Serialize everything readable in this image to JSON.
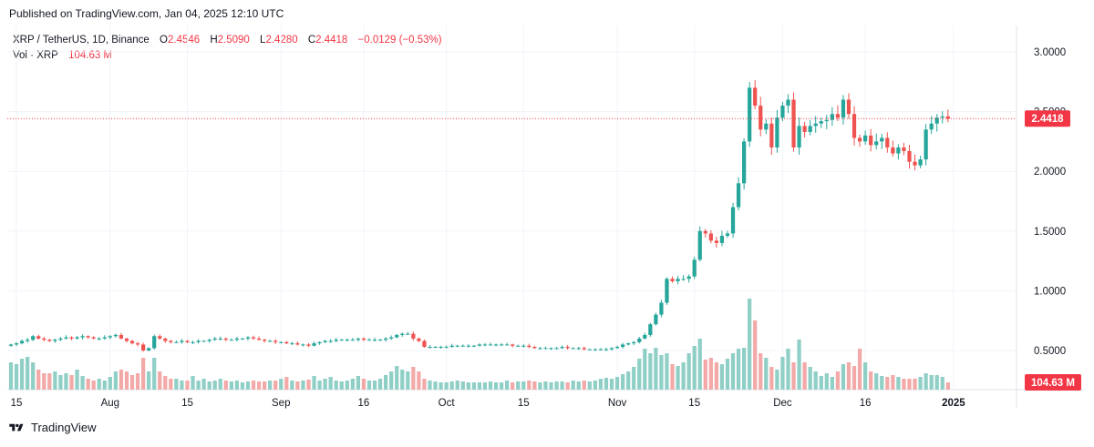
{
  "header": {
    "published": "Published on TradingView.com, Jan 04, 2025 12:10 UTC"
  },
  "legend": {
    "symbol": "XRP / TetherUS, 1D, Binance",
    "o_label": "O",
    "o_value": "2.4546",
    "h_label": "H",
    "h_value": "2.5090",
    "l_label": "L",
    "l_value": "2.4280",
    "c_label": "C",
    "c_value": "2.4418",
    "change": "−0.0129 (−0.53%)",
    "vol_label": "Vol · XRP",
    "vol_value": "104.63 M"
  },
  "footer": {
    "brand": "TradingView"
  },
  "colors": {
    "up": "#26a69a",
    "down": "#ef5350",
    "vol_up": "#8fcfc6",
    "vol_down": "#f2a9a8",
    "grid": "#f0f3fa",
    "price_line": "#f23645",
    "price_tag": "#f23645"
  },
  "chart_data": {
    "type": "candlestick",
    "y_axis": {
      "ticks": [
        "3.0000",
        "2.5000",
        "2.0000",
        "1.5000",
        "1.0000",
        "0.5000"
      ],
      "tick_values": [
        3.0,
        2.5,
        2.0,
        1.5,
        1.0,
        0.5
      ],
      "range": [
        0.18,
        3.2
      ]
    },
    "x_axis": {
      "ticks": [
        "15",
        "Aug",
        "15",
        "Sep",
        "16",
        "Oct",
        "15",
        "Nov",
        "15",
        "Dec",
        "16",
        "2025"
      ],
      "tick_dates": [
        "2024-07-15",
        "2024-08-01",
        "2024-08-15",
        "2024-09-01",
        "2024-09-16",
        "2024-10-01",
        "2024-10-15",
        "2024-11-01",
        "2024-11-15",
        "2024-12-01",
        "2024-12-16",
        "2025-01-01"
      ],
      "bold_tick": "2025",
      "start_date": "2024-07-14",
      "end_date": "2025-01-04"
    },
    "last_price": 2.4418,
    "last_price_label": "2.4418",
    "last_volume_label": "104.63 M",
    "close_series_description": "Daily closes read from chart, 2024-07-14 to 2025-01-04",
    "closes": [
      0.55,
      0.56,
      0.58,
      0.59,
      0.62,
      0.6,
      0.59,
      0.58,
      0.59,
      0.6,
      0.61,
      0.6,
      0.61,
      0.62,
      0.61,
      0.6,
      0.6,
      0.61,
      0.62,
      0.63,
      0.6,
      0.58,
      0.56,
      0.55,
      0.5,
      0.52,
      0.62,
      0.6,
      0.58,
      0.57,
      0.57,
      0.58,
      0.57,
      0.57,
      0.58,
      0.58,
      0.59,
      0.6,
      0.6,
      0.59,
      0.59,
      0.6,
      0.6,
      0.61,
      0.6,
      0.59,
      0.58,
      0.58,
      0.57,
      0.57,
      0.56,
      0.56,
      0.55,
      0.55,
      0.54,
      0.56,
      0.57,
      0.58,
      0.58,
      0.59,
      0.59,
      0.59,
      0.59,
      0.6,
      0.59,
      0.59,
      0.59,
      0.59,
      0.6,
      0.61,
      0.63,
      0.64,
      0.64,
      0.6,
      0.58,
      0.53,
      0.53,
      0.53,
      0.53,
      0.53,
      0.54,
      0.54,
      0.54,
      0.54,
      0.54,
      0.55,
      0.55,
      0.55,
      0.55,
      0.55,
      0.55,
      0.54,
      0.54,
      0.54,
      0.53,
      0.52,
      0.52,
      0.52,
      0.52,
      0.52,
      0.53,
      0.52,
      0.52,
      0.52,
      0.51,
      0.51,
      0.51,
      0.51,
      0.51,
      0.52,
      0.53,
      0.55,
      0.56,
      0.57,
      0.6,
      0.63,
      0.72,
      0.8,
      0.9,
      1.1,
      1.08,
      1.1,
      1.1,
      1.12,
      1.26,
      1.5,
      1.48,
      1.42,
      1.4,
      1.46,
      1.48,
      1.7,
      1.9,
      2.25,
      2.7,
      2.55,
      2.35,
      2.4,
      2.2,
      2.45,
      2.55,
      2.6,
      2.2,
      2.38,
      2.33,
      2.38,
      2.4,
      2.42,
      2.43,
      2.48,
      2.45,
      2.6,
      2.48,
      2.28,
      2.25,
      2.3,
      2.22,
      2.25,
      2.28,
      2.2,
      2.15,
      2.2,
      2.17,
      2.08,
      2.05,
      2.1,
      2.35,
      2.4,
      2.45,
      2.46,
      2.44
    ],
    "volume_description": "Daily volume bars, relative height 0-1 (largest bar = 1)",
    "volumes": [
      0.3,
      0.28,
      0.34,
      0.36,
      0.3,
      0.22,
      0.18,
      0.18,
      0.2,
      0.16,
      0.18,
      0.16,
      0.22,
      0.15,
      0.12,
      0.1,
      0.12,
      0.1,
      0.14,
      0.2,
      0.22,
      0.2,
      0.16,
      0.18,
      0.35,
      0.2,
      0.35,
      0.2,
      0.15,
      0.12,
      0.12,
      0.1,
      0.1,
      0.15,
      0.1,
      0.12,
      0.09,
      0.1,
      0.12,
      0.1,
      0.09,
      0.1,
      0.08,
      0.09,
      0.1,
      0.09,
      0.09,
      0.1,
      0.1,
      0.12,
      0.14,
      0.1,
      0.09,
      0.1,
      0.11,
      0.15,
      0.1,
      0.12,
      0.14,
      0.1,
      0.09,
      0.1,
      0.12,
      0.15,
      0.12,
      0.1,
      0.1,
      0.12,
      0.16,
      0.2,
      0.26,
      0.22,
      0.2,
      0.25,
      0.2,
      0.12,
      0.1,
      0.09,
      0.08,
      0.08,
      0.09,
      0.1,
      0.09,
      0.08,
      0.08,
      0.08,
      0.08,
      0.09,
      0.08,
      0.08,
      0.1,
      0.08,
      0.09,
      0.09,
      0.1,
      0.09,
      0.08,
      0.09,
      0.08,
      0.09,
      0.09,
      0.08,
      0.1,
      0.09,
      0.1,
      0.09,
      0.1,
      0.12,
      0.13,
      0.12,
      0.14,
      0.17,
      0.2,
      0.25,
      0.34,
      0.45,
      0.4,
      0.46,
      0.38,
      0.4,
      0.28,
      0.26,
      0.3,
      0.4,
      0.48,
      0.56,
      0.33,
      0.35,
      0.3,
      0.28,
      0.34,
      0.4,
      0.45,
      0.46,
      1.0,
      0.76,
      0.4,
      0.35,
      0.25,
      0.22,
      0.36,
      0.45,
      0.3,
      0.55,
      0.3,
      0.25,
      0.2,
      0.15,
      0.18,
      0.14,
      0.2,
      0.28,
      0.3,
      0.26,
      0.45,
      0.3,
      0.2,
      0.18,
      0.15,
      0.14,
      0.16,
      0.14,
      0.12,
      0.12,
      0.12,
      0.14,
      0.18,
      0.16,
      0.16,
      0.14,
      0.08
    ]
  }
}
